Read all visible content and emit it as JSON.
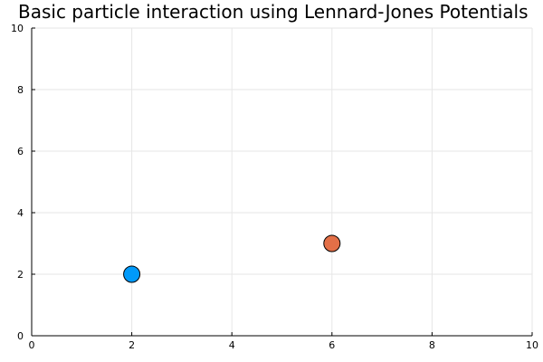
{
  "chart_data": {
    "type": "scatter",
    "title": "Basic particle interaction using Lennard-Jones Potentials",
    "xlabel": "",
    "ylabel": "",
    "xlim": [
      0,
      10
    ],
    "ylim": [
      0,
      10
    ],
    "grid": true,
    "legend": "none",
    "x_ticks": [
      0,
      2,
      4,
      6,
      8,
      10
    ],
    "y_ticks": [
      0,
      2,
      4,
      6,
      8,
      10
    ],
    "series": [
      {
        "x": [
          2
        ],
        "y": [
          2
        ],
        "color": "#009afa"
      },
      {
        "x": [
          6
        ],
        "y": [
          3
        ],
        "color": "#e36f47"
      }
    ]
  }
}
